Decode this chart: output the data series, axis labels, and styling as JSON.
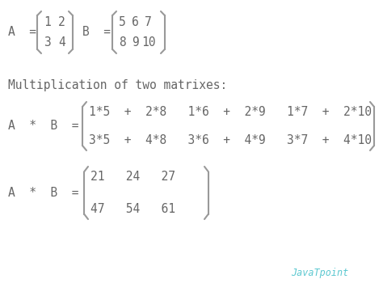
{
  "bg_color": "#ffffff",
  "text_color": "#666666",
  "bracket_color": "#999999",
  "javatpoint_color": "#5bc8d0",
  "font_size": 10.5,
  "watermark_font_size": 8.5,
  "watermark": "JavaTpoint",
  "multiply_label": "Multiplication of two matrixes:",
  "row1_a_label": "A  =",
  "row1_b_label": "B  =",
  "row3_label": "A  *  B  =",
  "row4_label": "A  *  B  =",
  "expand_row1": "1*5  +  2*8   1*6  +  2*9   1*7  +  2*10",
  "expand_row2": "3*5  +  4*8   3*6  +  4*9   3*7  +  4*10",
  "result_row1": "21   24   27",
  "result_row2": "47   54   61"
}
